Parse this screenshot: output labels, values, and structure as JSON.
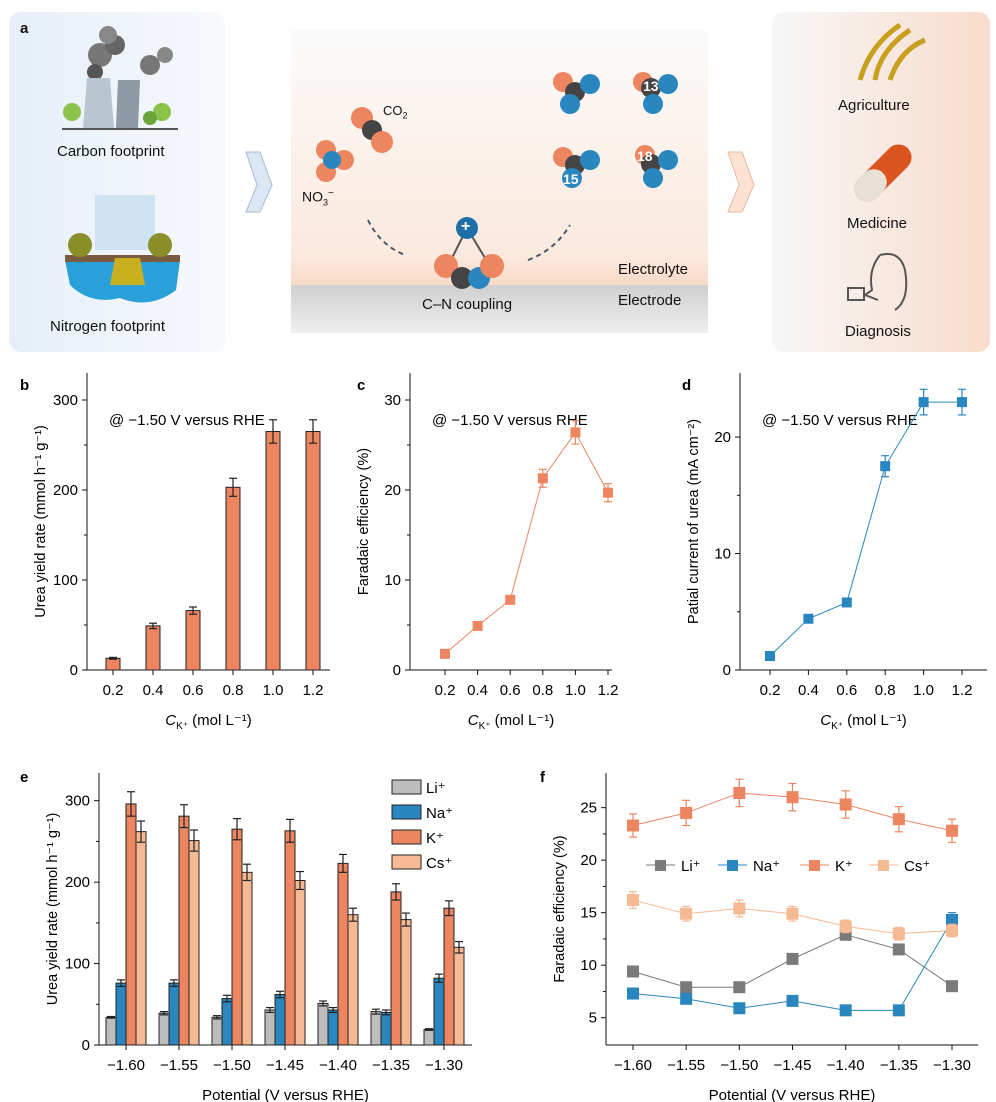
{
  "panel_a": {
    "label": "a",
    "left": {
      "carbon": "Carbon footprint",
      "nitrogen": "Nitrogen footprint"
    },
    "center": {
      "co2": "CO",
      "co2_sub": "2",
      "no3": "NO",
      "no3_sub": "3",
      "no3_sup": "−",
      "coupling": "C–N coupling",
      "electrolyte": "Electrolyte",
      "electrode": "Electrode",
      "iso13": "13",
      "iso15": "15",
      "iso18": "18",
      "plus": "+"
    },
    "right": {
      "agriculture": "Agriculture",
      "medicine": "Medicine",
      "diagnosis": "Diagnosis"
    }
  },
  "colors": {
    "li": "#bdbdbd",
    "li_line": "#7a7a7a",
    "na": "#2a86bf",
    "k": "#ec8560",
    "cs": "#f5b993"
  },
  "chart_data": [
    {
      "panel": "b",
      "type": "bar",
      "annotation": "@ −1.50 V versus RHE",
      "categories": [
        "0.2",
        "0.4",
        "0.6",
        "0.8",
        "1.0",
        "1.2"
      ],
      "values": [
        13,
        49,
        66,
        203,
        265,
        265
      ],
      "errors": [
        1,
        3,
        4,
        10,
        13,
        13
      ],
      "ylabel": "Urea yield rate (mmol h⁻¹ g⁻¹)",
      "xlabel": {
        "main": "C",
        "sub": "K⁺",
        "rest": " (mol L⁻¹)"
      },
      "ylim": [
        0,
        330
      ],
      "yticks": [
        "0",
        "100",
        "200",
        "300"
      ]
    },
    {
      "panel": "c",
      "type": "line",
      "annotation": "@ −1.50 V versus RHE",
      "categories": [
        "0.2",
        "0.4",
        "0.6",
        "0.8",
        "1.0",
        "1.2"
      ],
      "values": [
        1.8,
        4.9,
        7.8,
        21.3,
        26.4,
        19.7
      ],
      "errors": [
        0.2,
        0.3,
        0.4,
        1.0,
        1.3,
        1.0
      ],
      "ylabel": "Faradaic efficiency (%)",
      "xlabel": {
        "main": "C",
        "sub": "K⁺",
        "rest": " (mol L⁻¹)"
      },
      "ylim": [
        0,
        33
      ],
      "yticks": [
        "0",
        "10",
        "20",
        "30"
      ]
    },
    {
      "panel": "d",
      "type": "line",
      "annotation": "@ −1.50 V versus RHE",
      "categories": [
        "0.2",
        "0.4",
        "0.6",
        "0.8",
        "1.0",
        "1.2"
      ],
      "values": [
        1.2,
        4.4,
        5.8,
        17.5,
        23.0,
        23.0
      ],
      "errors": [
        0.1,
        0.2,
        0.3,
        0.9,
        1.1,
        1.1
      ],
      "ylabel": "Patial current of urea (mA cm⁻²)",
      "xlabel": {
        "main": "C",
        "sub": "K⁺",
        "rest": " (mol L⁻¹)"
      },
      "ylim": [
        0,
        25.5
      ],
      "yticks": [
        "0",
        "10",
        "20"
      ]
    },
    {
      "panel": "e",
      "type": "bar",
      "categories": [
        "−1.60",
        "−1.55",
        "−1.50",
        "−1.45",
        "−1.40",
        "−1.35",
        "−1.30"
      ],
      "xlabel": "Potential (V versus RHE)",
      "ylabel": "Urea yield rate (mmol h⁻¹ g⁻¹)",
      "ylim": [
        0,
        334
      ],
      "yticks": [
        "0",
        "100",
        "200",
        "300"
      ],
      "legend_position": "top-right",
      "series": [
        {
          "name": "Li⁺",
          "values": [
            34,
            39,
            34,
            43,
            51,
            41,
            19
          ],
          "errors": [
            1,
            2,
            2,
            3,
            3,
            3,
            1
          ]
        },
        {
          "name": "Na⁺",
          "values": [
            76,
            76,
            57,
            62,
            43,
            40,
            82
          ],
          "errors": [
            4,
            4,
            4,
            4,
            3,
            3,
            5
          ]
        },
        {
          "name": "K⁺",
          "values": [
            296,
            281,
            265,
            263,
            223,
            188,
            168
          ],
          "errors": [
            15,
            14,
            13,
            14,
            11,
            10,
            9
          ]
        },
        {
          "name": "Cs⁺",
          "values": [
            262,
            251,
            212,
            202,
            160,
            154,
            120
          ],
          "errors": [
            13,
            13,
            10,
            11,
            8,
            8,
            7
          ]
        }
      ]
    },
    {
      "panel": "f",
      "type": "line",
      "categories": [
        "−1.60",
        "−1.55",
        "−1.50",
        "−1.45",
        "−1.40",
        "−1.35",
        "−1.30"
      ],
      "xlabel": "Potential (V versus RHE)",
      "ylabel": "Faradaic efficiency (%)",
      "ylim": [
        2.4,
        28.3
      ],
      "yticks": [
        "5",
        "10",
        "15",
        "20",
        "25"
      ],
      "legend_position": "center",
      "series": [
        {
          "name": "Li⁺",
          "values": [
            9.4,
            7.9,
            7.9,
            10.6,
            12.9,
            11.5,
            8.0
          ],
          "errors": [
            0.3,
            0.3,
            0.3,
            0.4,
            0.5,
            0.4,
            0.3
          ]
        },
        {
          "name": "Na⁺",
          "values": [
            7.3,
            6.8,
            5.9,
            6.6,
            5.7,
            5.7,
            14.3
          ],
          "errors": [
            0.2,
            0.2,
            0.2,
            0.2,
            0.2,
            0.2,
            0.7
          ]
        },
        {
          "name": "K⁺",
          "values": [
            23.3,
            24.5,
            26.4,
            26.0,
            25.3,
            23.9,
            22.8
          ],
          "errors": [
            1.1,
            1.2,
            1.3,
            1.3,
            1.3,
            1.2,
            1.1
          ]
        },
        {
          "name": "Cs⁺",
          "values": [
            16.2,
            14.9,
            15.4,
            14.9,
            13.7,
            13.0,
            13.3
          ],
          "errors": [
            0.8,
            0.7,
            0.8,
            0.7,
            0.6,
            0.6,
            0.6
          ]
        }
      ]
    }
  ]
}
